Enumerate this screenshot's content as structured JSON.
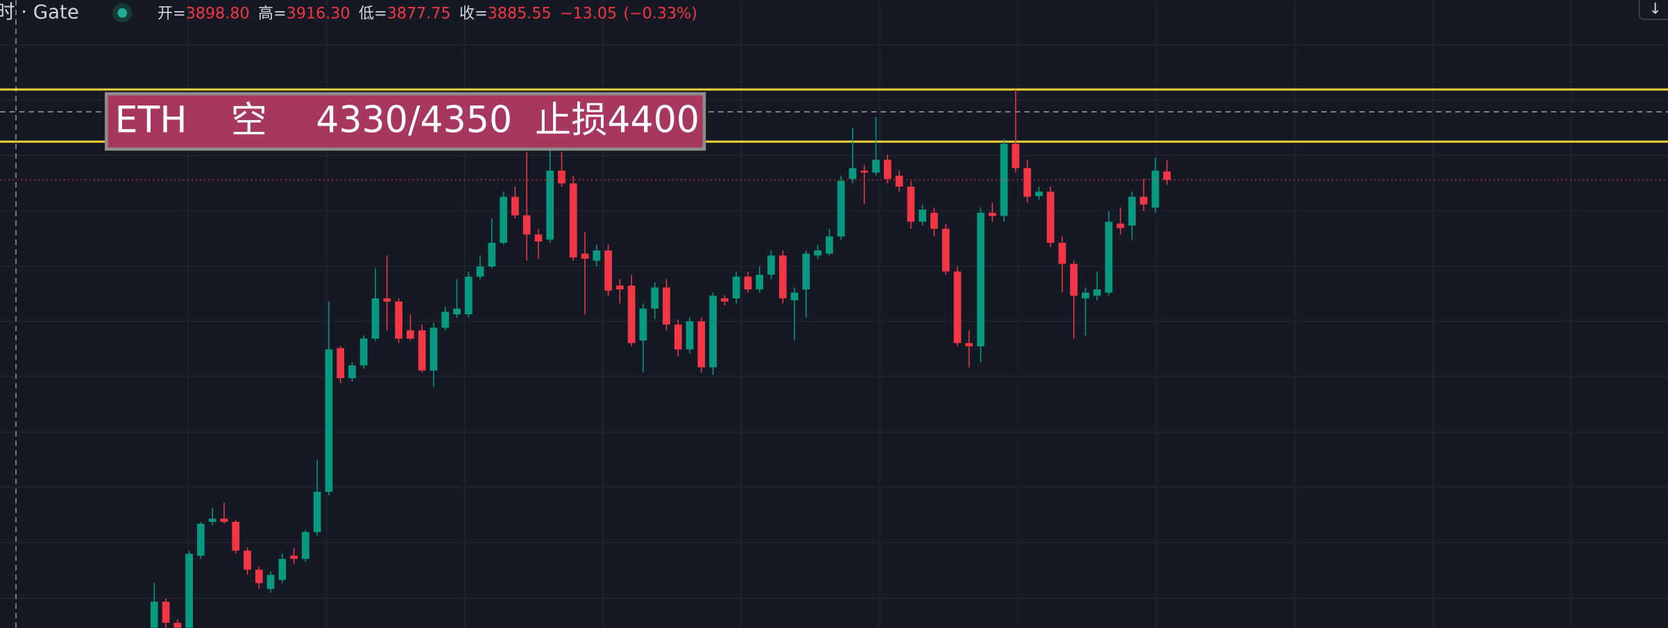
{
  "header": {
    "symbol": "时 · Gate",
    "open_label": "开=",
    "open": "3898.80",
    "high_label": "高=",
    "high": "3916.30",
    "low_label": "低=",
    "low": "3877.75",
    "close_label": "收=",
    "close": "3885.55",
    "change": "−13.05",
    "change_pct": "(−0.33%)",
    "button": "↓"
  },
  "annotation": {
    "parts": [
      "ETH",
      "空",
      "4330/4350",
      "止损4400"
    ]
  },
  "chart_data": {
    "type": "candlestick",
    "open": [
      3184,
      3225,
      3192,
      3184,
      3297,
      3350,
      3355,
      3350,
      3305,
      3275,
      3245,
      3259,
      3297,
      3292,
      3334,
      3397,
      3622,
      3575,
      3595,
      3637,
      3700,
      3695,
      3650,
      3650,
      3587,
      3654,
      3675,
      3675,
      3734,
      3750,
      3787,
      3859,
      3830,
      3800,
      3792,
      3900,
      3880,
      3770,
      3759,
      3775,
      3720,
      3720,
      3634,
      3684,
      3717,
      3659,
      3620,
      3664,
      3592,
      3700,
      3700,
      3734,
      3714,
      3737,
      3767,
      3697,
      3714,
      3767,
      3770,
      3797,
      3887,
      3900,
      3897,
      3917,
      3892,
      3875,
      3820,
      3834,
      3809,
      3742,
      3630,
      3625,
      3834,
      3829,
      3942,
      3904,
      3860,
      3867,
      3787,
      3754,
      3700,
      3704,
      3709,
      3817,
      3814,
      3859,
      3842,
      3898.8
    ],
    "high": [
      3254,
      3230,
      3197,
      3304,
      3350,
      3372,
      3380,
      3353,
      3310,
      3280,
      3272,
      3300,
      3309,
      3337,
      3447,
      3695,
      3625,
      3600,
      3642,
      3747,
      3767,
      3700,
      3675,
      3659,
      3662,
      3687,
      3730,
      3742,
      3767,
      3825,
      3867,
      3875,
      3929,
      3809,
      3950,
      3929,
      3892,
      3804,
      3784,
      3784,
      3730,
      3737,
      3692,
      3725,
      3730,
      3667,
      3670,
      3670,
      3709,
      3705,
      3742,
      3742,
      3750,
      3775,
      3775,
      3717,
      3775,
      3784,
      3809,
      3892,
      3967,
      3909,
      3984,
      3925,
      3900,
      3884,
      3847,
      3842,
      3817,
      3750,
      3650,
      3842,
      3850,
      3950,
      4027,
      3917,
      3875,
      3875,
      3797,
      3759,
      3717,
      3742,
      3837,
      3842,
      3867,
      3887,
      3920,
      3916.3
    ],
    "low": [
      3175,
      3184,
      3177,
      3175,
      3292,
      3345,
      3347,
      3300,
      3267,
      3245,
      3239,
      3254,
      3284,
      3287,
      3329,
      3392,
      3567,
      3570,
      3590,
      3634,
      3650,
      3630,
      3634,
      3584,
      3562,
      3650,
      3670,
      3670,
      3730,
      3747,
      3784,
      3825,
      3759,
      3762,
      3787,
      3875,
      3759,
      3675,
      3750,
      3704,
      3692,
      3625,
      3584,
      3667,
      3650,
      3609,
      3614,
      3584,
      3580,
      3689,
      3692,
      3709,
      3709,
      3730,
      3692,
      3634,
      3670,
      3762,
      3767,
      3792,
      3880,
      3847,
      3892,
      3880,
      3867,
      3809,
      3814,
      3797,
      3737,
      3625,
      3592,
      3600,
      3820,
      3820,
      3897,
      3850,
      3854,
      3780,
      3709,
      3637,
      3642,
      3697,
      3704,
      3800,
      3792,
      3837,
      3834,
      3877.75
    ],
    "close": [
      3225,
      3192,
      3184,
      3300,
      3347,
      3355,
      3350,
      3305,
      3275,
      3254,
      3267,
      3292,
      3292,
      3334,
      3397,
      3620,
      3575,
      3595,
      3637,
      3700,
      3695,
      3637,
      3637,
      3587,
      3654,
      3679,
      3684,
      3734,
      3750,
      3787,
      3859,
      3830,
      3800,
      3789,
      3900,
      3880,
      3764,
      3762,
      3775,
      3712,
      3714,
      3630,
      3684,
      3717,
      3659,
      3620,
      3664,
      3592,
      3704,
      3695,
      3734,
      3714,
      3737,
      3767,
      3700,
      3709,
      3770,
      3775,
      3797,
      3884,
      3904,
      3897,
      3917,
      3887,
      3875,
      3820,
      3839,
      3809,
      3742,
      3630,
      3625,
      3834,
      3829,
      3942,
      3904,
      3859,
      3867,
      3787,
      3754,
      3704,
      3709,
      3714,
      3820,
      3810,
      3859,
      3847,
      3900,
      3885.55
    ],
    "ylim": [
      3184,
      4167
    ],
    "colors": {
      "up": "#089981",
      "down": "#f23645"
    }
  }
}
